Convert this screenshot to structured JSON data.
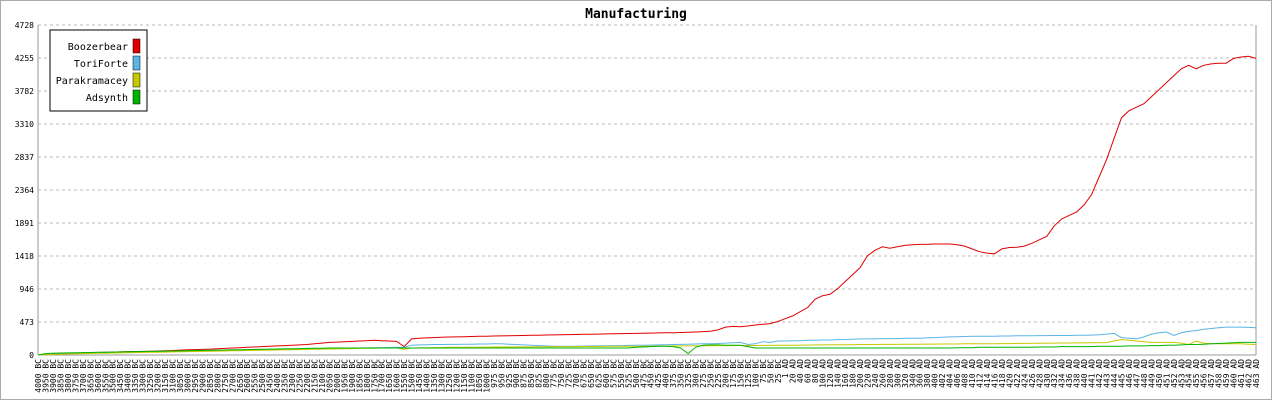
{
  "chart_data": {
    "type": "line",
    "title": "Manufacturing",
    "categories": [
      "4000 BC",
      "3950 BC",
      "3900 BC",
      "3850 BC",
      "3800 BC",
      "3750 BC",
      "3700 BC",
      "3650 BC",
      "3600 BC",
      "3550 BC",
      "3500 BC",
      "3450 BC",
      "3400 BC",
      "3350 BC",
      "3300 BC",
      "3250 BC",
      "3200 BC",
      "3150 BC",
      "3100 BC",
      "3050 BC",
      "3000 BC",
      "2950 BC",
      "2900 BC",
      "2850 BC",
      "2800 BC",
      "2750 BC",
      "2700 BC",
      "2650 BC",
      "2600 BC",
      "2550 BC",
      "2500 BC",
      "2450 BC",
      "2400 BC",
      "2350 BC",
      "2300 BC",
      "2250 BC",
      "2200 BC",
      "2150 BC",
      "2100 BC",
      "2050 BC",
      "2000 BC",
      "1950 BC",
      "1900 BC",
      "1850 BC",
      "1800 BC",
      "1750 BC",
      "1700 BC",
      "1650 BC",
      "1600 BC",
      "1550 BC",
      "1500 BC",
      "1450 BC",
      "1400 BC",
      "1350 BC",
      "1300 BC",
      "1250 BC",
      "1200 BC",
      "1150 BC",
      "1100 BC",
      "1050 BC",
      "1000 BC",
      "975 BC",
      "950 BC",
      "925 BC",
      "900 BC",
      "875 BC",
      "850 BC",
      "825 BC",
      "800 BC",
      "775 BC",
      "750 BC",
      "725 BC",
      "700 BC",
      "675 BC",
      "650 BC",
      "625 BC",
      "600 BC",
      "575 BC",
      "550 BC",
      "525 BC",
      "500 BC",
      "475 BC",
      "450 BC",
      "425 BC",
      "400 BC",
      "375 BC",
      "350 BC",
      "325 BC",
      "300 BC",
      "275 BC",
      "250 BC",
      "225 BC",
      "200 BC",
      "175 BC",
      "150 BC",
      "125 BC",
      "100 BC",
      "75 BC",
      "50 BC",
      "25 BC",
      "1 AD",
      "20 AD",
      "40 AD",
      "60 AD",
      "80 AD",
      "100 AD",
      "120 AD",
      "140 AD",
      "160 AD",
      "180 AD",
      "200 AD",
      "220 AD",
      "240 AD",
      "260 AD",
      "280 AD",
      "300 AD",
      "320 AD",
      "340 AD",
      "360 AD",
      "380 AD",
      "400 AD",
      "402 AD",
      "404 AD",
      "406 AD",
      "408 AD",
      "410 AD",
      "412 AD",
      "414 AD",
      "416 AD",
      "418 AD",
      "420 AD",
      "422 AD",
      "424 AD",
      "426 AD",
      "428 AD",
      "430 AD",
      "432 AD",
      "434 AD",
      "436 AD",
      "438 AD",
      "440 AD",
      "441 AD",
      "442 AD",
      "443 AD",
      "444 AD",
      "445 AD",
      "446 AD",
      "447 AD",
      "448 AD",
      "449 AD",
      "450 AD",
      "451 AD",
      "452 AD",
      "453 AD",
      "454 AD",
      "455 AD",
      "456 AD",
      "457 AD",
      "458 AD",
      "459 AD",
      "460 AD",
      "461 AD",
      "462 AD",
      "463 AD"
    ],
    "series": [
      {
        "name": "Boozerbear",
        "color": "#e00000",
        "values": [
          0,
          5,
          10,
          15,
          20,
          25,
          30,
          33,
          36,
          40,
          42,
          45,
          48,
          50,
          52,
          55,
          58,
          62,
          65,
          70,
          75,
          78,
          80,
          85,
          90,
          95,
          100,
          105,
          110,
          115,
          120,
          125,
          130,
          135,
          140,
          145,
          150,
          160,
          170,
          180,
          185,
          190,
          195,
          200,
          205,
          210,
          205,
          200,
          195,
          120,
          230,
          240,
          245,
          250,
          255,
          258,
          260,
          262,
          265,
          268,
          270,
          272,
          274,
          276,
          278,
          280,
          282,
          284,
          286,
          288,
          290,
          292,
          294,
          296,
          298,
          300,
          302,
          304,
          306,
          308,
          310,
          312,
          314,
          316,
          318,
          320,
          322,
          325,
          330,
          335,
          340,
          360,
          400,
          410,
          405,
          415,
          430,
          440,
          450,
          480,
          520,
          560,
          620,
          680,
          800,
          850,
          870,
          950,
          1050,
          1150,
          1250,
          1420,
          1500,
          1550,
          1530,
          1550,
          1570,
          1580,
          1585,
          1585,
          1590,
          1590,
          1590,
          1580,
          1560,
          1520,
          1480,
          1460,
          1450,
          1520,
          1540,
          1545,
          1560,
          1600,
          1650,
          1700,
          1850,
          1950,
          2000,
          2050,
          2150,
          2300,
          2550,
          2800,
          3100,
          3400,
          3500,
          3550,
          3600,
          3700,
          3800,
          3900,
          4000,
          4100,
          4150,
          4100,
          4150,
          4170,
          4180,
          4180,
          4250,
          4270,
          4280,
          4250
        ]
      },
      {
        "name": "ToriForte",
        "color": "#5ab4e6",
        "values": [
          0,
          5,
          10,
          15,
          20,
          22,
          25,
          28,
          30,
          32,
          34,
          36,
          38,
          40,
          42,
          44,
          46,
          48,
          50,
          52,
          54,
          56,
          58,
          60,
          62,
          64,
          66,
          68,
          70,
          72,
          74,
          76,
          78,
          80,
          82,
          84,
          86,
          88,
          90,
          92,
          94,
          96,
          98,
          100,
          102,
          104,
          106,
          108,
          110,
          112,
          140,
          145,
          148,
          150,
          150,
          152,
          152,
          155,
          155,
          158,
          158,
          160,
          160,
          155,
          150,
          145,
          140,
          135,
          130,
          125,
          125,
          125,
          125,
          128,
          130,
          130,
          132,
          135,
          135,
          138,
          140,
          140,
          142,
          145,
          148,
          150,
          152,
          155,
          158,
          160,
          162,
          165,
          170,
          175,
          180,
          150,
          160,
          190,
          180,
          200,
          200,
          205,
          205,
          210,
          210,
          215,
          215,
          220,
          220,
          225,
          230,
          230,
          230,
          235,
          235,
          235,
          240,
          240,
          240,
          245,
          250,
          255,
          260,
          262,
          265,
          268,
          270,
          270,
          270,
          272,
          272,
          275,
          275,
          275,
          278,
          278,
          280,
          280,
          280,
          282,
          282,
          285,
          290,
          300,
          310,
          250,
          240,
          230,
          260,
          300,
          320,
          330,
          280,
          320,
          340,
          350,
          370,
          380,
          390,
          400,
          400,
          400,
          395,
          390
        ]
      },
      {
        "name": "Parakramacey",
        "color": "#c8c800",
        "values": [
          0,
          4,
          8,
          12,
          15,
          18,
          20,
          22,
          24,
          26,
          28,
          30,
          32,
          34,
          36,
          38,
          40,
          42,
          44,
          46,
          48,
          50,
          52,
          54,
          56,
          58,
          60,
          62,
          64,
          66,
          68,
          70,
          72,
          74,
          76,
          78,
          80,
          82,
          84,
          86,
          88,
          90,
          92,
          94,
          96,
          98,
          100,
          100,
          100,
          80,
          100,
          102,
          104,
          106,
          108,
          110,
          110,
          110,
          112,
          112,
          112,
          114,
          114,
          114,
          116,
          116,
          116,
          118,
          118,
          118,
          120,
          120,
          120,
          122,
          122,
          122,
          124,
          124,
          124,
          126,
          126,
          126,
          128,
          128,
          128,
          130,
          130,
          130,
          132,
          132,
          132,
          134,
          134,
          134,
          136,
          136,
          136,
          138,
          138,
          140,
          140,
          140,
          142,
          142,
          144,
          144,
          146,
          146,
          148,
          148,
          150,
          150,
          150,
          152,
          152,
          152,
          154,
          154,
          154,
          156,
          156,
          158,
          158,
          158,
          160,
          160,
          160,
          162,
          162,
          164,
          164,
          166,
          166,
          168,
          168,
          170,
          170,
          172,
          172,
          174,
          174,
          176,
          176,
          178,
          200,
          220,
          210,
          200,
          190,
          180,
          180,
          180,
          180,
          170,
          150,
          200,
          170,
          160,
          160,
          160,
          160,
          160,
          155,
          150
        ]
      },
      {
        "name": "Adsynth",
        "color": "#00b400",
        "values": [
          0,
          20,
          25,
          28,
          30,
          32,
          34,
          36,
          38,
          40,
          42,
          44,
          46,
          48,
          50,
          52,
          54,
          56,
          58,
          60,
          62,
          64,
          66,
          68,
          70,
          72,
          74,
          76,
          78,
          80,
          82,
          84,
          86,
          88,
          90,
          92,
          94,
          96,
          98,
          100,
          100,
          100,
          100,
          100,
          100,
          100,
          100,
          100,
          100,
          100,
          100,
          100,
          100,
          100,
          100,
          100,
          100,
          100,
          100,
          100,
          100,
          100,
          100,
          100,
          100,
          100,
          100,
          100,
          100,
          100,
          100,
          100,
          100,
          100,
          100,
          100,
          100,
          100,
          100,
          100,
          110,
          115,
          120,
          125,
          125,
          120,
          100,
          20,
          110,
          140,
          145,
          145,
          140,
          140,
          140,
          120,
          100,
          100,
          100,
          100,
          100,
          100,
          100,
          100,
          100,
          100,
          100,
          100,
          100,
          100,
          100,
          100,
          100,
          100,
          100,
          100,
          100,
          100,
          100,
          100,
          100,
          100,
          100,
          105,
          105,
          105,
          110,
          110,
          110,
          110,
          110,
          110,
          110,
          110,
          115,
          115,
          115,
          120,
          120,
          120,
          120,
          120,
          125,
          125,
          125,
          125,
          130,
          130,
          130,
          135,
          135,
          140,
          140,
          145,
          150,
          150,
          155,
          160,
          165,
          170,
          175,
          180,
          180,
          180
        ]
      }
    ],
    "ylim": [
      0,
      4728
    ],
    "yticks": [
      0,
      473,
      946,
      1418,
      1891,
      2364,
      2837,
      3310,
      3782,
      4255,
      4728
    ],
    "grid": true,
    "legend": "top-left"
  }
}
